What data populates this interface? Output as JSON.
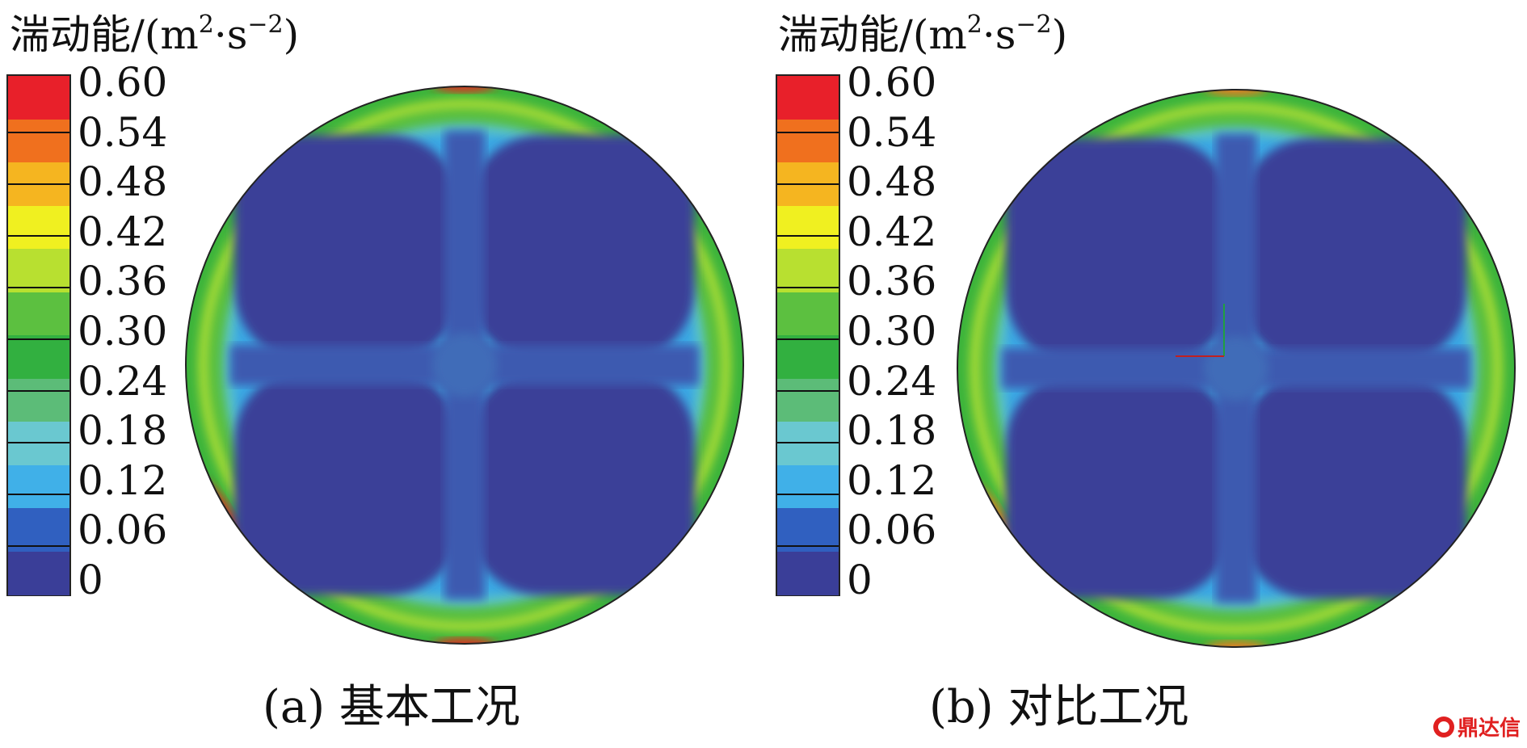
{
  "colorbar_title_text": "湍动能/(m",
  "colorbar_title_sup1": "2",
  "colorbar_title_mid": "·s",
  "colorbar_title_sup2": "−2",
  "colorbar_title_end": ")",
  "colorbar_ticks": [
    "0.60",
    "0.54",
    "0.48",
    "0.42",
    "0.36",
    "0.30",
    "0.24",
    "0.18",
    "0.12",
    "0.06",
    "0"
  ],
  "colorbar_band_colors": [
    "#e8202a",
    "#f0701e",
    "#f5b520",
    "#f0f020",
    "#b8e030",
    "#5cc040",
    "#32b040",
    "#5cbc78",
    "#6ac8d0",
    "#40b0e8",
    "#3060c0",
    "#3a3e98"
  ],
  "panels": [
    {
      "caption": "(a) 基本工况"
    },
    {
      "caption": "(b) 对比工况"
    }
  ],
  "watermark": "鼎达信"
}
